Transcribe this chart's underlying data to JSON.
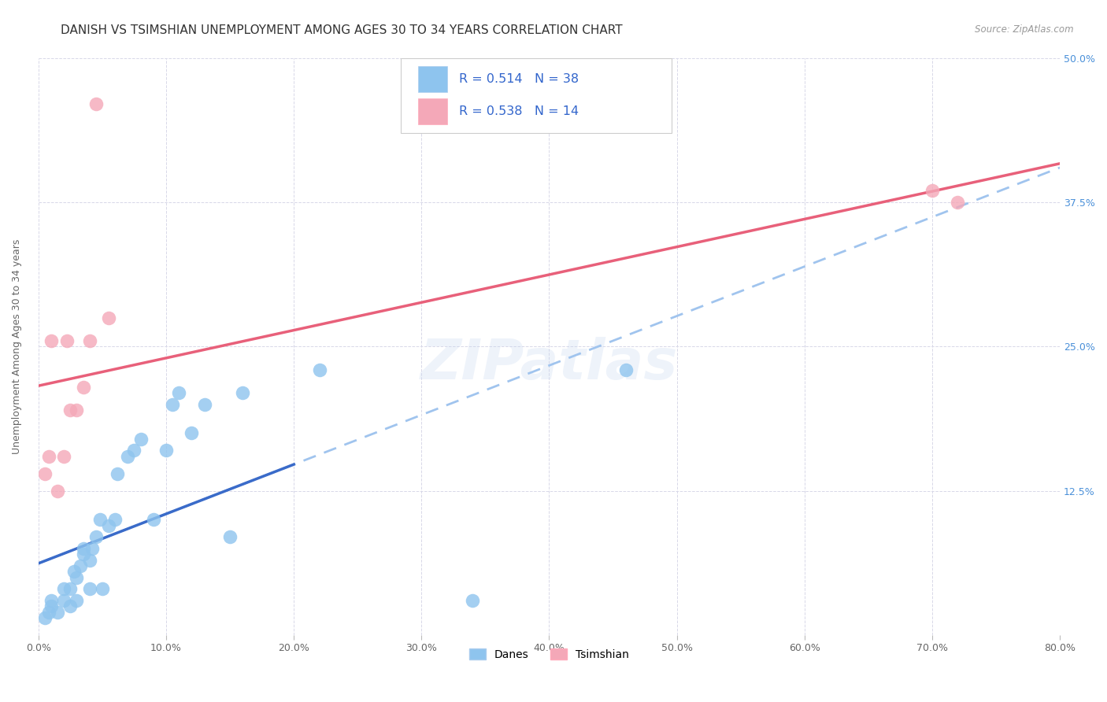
{
  "title": "DANISH VS TSIMSHIAN UNEMPLOYMENT AMONG AGES 30 TO 34 YEARS CORRELATION CHART",
  "source": "Source: ZipAtlas.com",
  "ylabel": "Unemployment Among Ages 30 to 34 years",
  "xlim": [
    0.0,
    0.8
  ],
  "ylim": [
    0.0,
    0.5
  ],
  "xtick_labels": [
    "0.0%",
    "10.0%",
    "20.0%",
    "30.0%",
    "40.0%",
    "50.0%",
    "60.0%",
    "70.0%",
    "80.0%"
  ],
  "xtick_values": [
    0.0,
    0.1,
    0.2,
    0.3,
    0.4,
    0.5,
    0.6,
    0.7,
    0.8
  ],
  "ytick_values": [
    0.125,
    0.25,
    0.375,
    0.5
  ],
  "ytick_right_labels": [
    "12.5%",
    "25.0%",
    "37.5%",
    "50.0%"
  ],
  "danes_color": "#8EC4EE",
  "tsimshian_color": "#F4A8B8",
  "danes_R": 0.514,
  "danes_N": 38,
  "tsimshian_R": 0.538,
  "tsimshian_N": 14,
  "danes_line_color": "#3A6BC9",
  "danes_dash_color": "#A0C4EE",
  "tsimshian_line_color": "#E8607A",
  "watermark": "ZIPatlas",
  "danes_x": [
    0.005,
    0.008,
    0.01,
    0.01,
    0.015,
    0.02,
    0.02,
    0.025,
    0.025,
    0.028,
    0.03,
    0.03,
    0.033,
    0.035,
    0.035,
    0.04,
    0.04,
    0.042,
    0.045,
    0.048,
    0.05,
    0.055,
    0.06,
    0.062,
    0.07,
    0.075,
    0.08,
    0.09,
    0.1,
    0.105,
    0.11,
    0.12,
    0.13,
    0.15,
    0.16,
    0.22,
    0.34,
    0.46
  ],
  "danes_y": [
    0.015,
    0.02,
    0.025,
    0.03,
    0.02,
    0.03,
    0.04,
    0.025,
    0.04,
    0.055,
    0.03,
    0.05,
    0.06,
    0.07,
    0.075,
    0.04,
    0.065,
    0.075,
    0.085,
    0.1,
    0.04,
    0.095,
    0.1,
    0.14,
    0.155,
    0.16,
    0.17,
    0.1,
    0.16,
    0.2,
    0.21,
    0.175,
    0.2,
    0.085,
    0.21,
    0.23,
    0.03,
    0.23
  ],
  "tsimshian_x": [
    0.005,
    0.008,
    0.01,
    0.015,
    0.02,
    0.022,
    0.025,
    0.03,
    0.035,
    0.04,
    0.045,
    0.055,
    0.7,
    0.72
  ],
  "tsimshian_y": [
    0.14,
    0.155,
    0.255,
    0.125,
    0.155,
    0.255,
    0.195,
    0.195,
    0.215,
    0.255,
    0.46,
    0.275,
    0.385,
    0.375
  ],
  "background_color": "#FFFFFF",
  "grid_color": "#D8D8E8",
  "right_tick_color": "#4A90D9"
}
